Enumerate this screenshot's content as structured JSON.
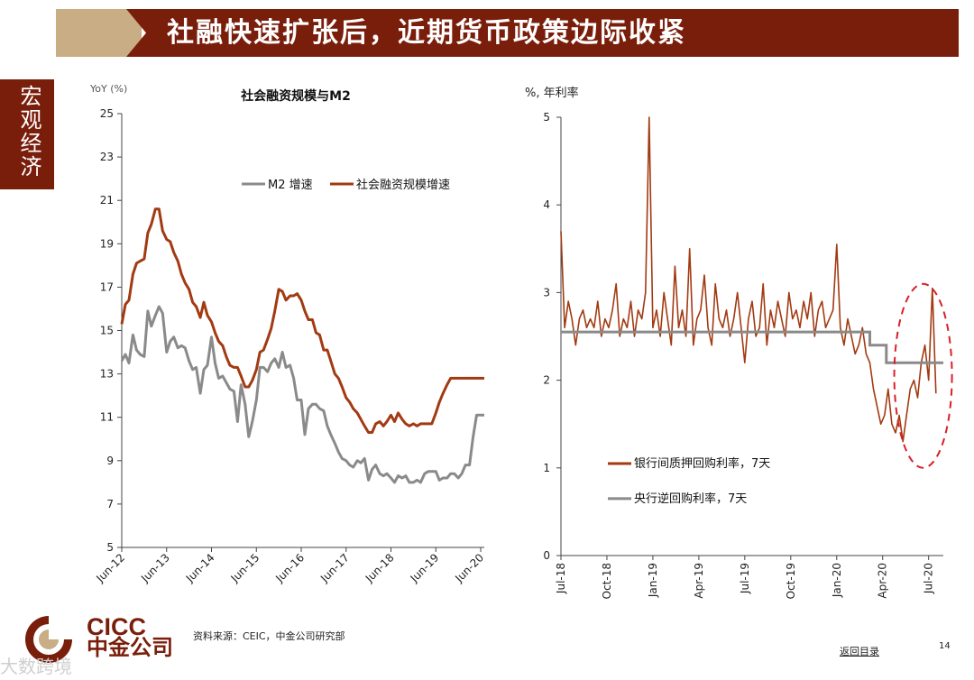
{
  "header": {
    "title": "社融快速扩张后，近期货币政策边际收紧"
  },
  "side_tab": {
    "label": "宏观经济"
  },
  "footer": {
    "source": "资料来源：CEIC，中金公司研究部",
    "back_link": "返回目录",
    "page_number": "14",
    "logo_en": "CICC",
    "logo_cn": "中金公司",
    "watermark": "大数跨境"
  },
  "colors": {
    "brand": "#7a1e0c",
    "accent_tan": "#c9ad84",
    "series_rust": "#a23a12",
    "series_gray": "#8a8a8a",
    "highlight": "#d8202a"
  },
  "chart_data": [
    {
      "type": "line",
      "title": "社会融资规模与M2",
      "ylabel": "YoY (%)",
      "xlabel": "",
      "ylim": [
        5,
        25
      ],
      "yticks": [
        5,
        7,
        9,
        11,
        13,
        15,
        17,
        19,
        21,
        23,
        25
      ],
      "xlim": [
        2012.42,
        2020.5
      ],
      "xtick_labels": [
        "Jun-12",
        "Jun-13",
        "Jun-14",
        "Jun-15",
        "Jun-16",
        "Jun-17",
        "Jun-18",
        "Jun-19",
        "Jun-20"
      ],
      "xtick_values": [
        2012.42,
        2013.42,
        2014.42,
        2015.42,
        2016.42,
        2017.42,
        2018.42,
        2019.42,
        2020.42
      ],
      "legend": "top-center",
      "series": [
        {
          "name": "M2 增速",
          "color": "#8a8a8a",
          "x": [
            2012.42,
            2012.5,
            2012.58,
            2012.67,
            2012.75,
            2012.83,
            2012.92,
            2013.0,
            2013.08,
            2013.17,
            2013.25,
            2013.33,
            2013.42,
            2013.5,
            2013.58,
            2013.67,
            2013.75,
            2013.83,
            2013.92,
            2014.0,
            2014.08,
            2014.17,
            2014.25,
            2014.33,
            2014.42,
            2014.5,
            2014.58,
            2014.67,
            2014.75,
            2014.83,
            2014.92,
            2015.0,
            2015.08,
            2015.17,
            2015.25,
            2015.33,
            2015.42,
            2015.5,
            2015.58,
            2015.67,
            2015.75,
            2015.83,
            2015.92,
            2016.0,
            2016.08,
            2016.17,
            2016.25,
            2016.33,
            2016.42,
            2016.5,
            2016.58,
            2016.67,
            2016.75,
            2016.83,
            2016.92,
            2017.0,
            2017.08,
            2017.17,
            2017.25,
            2017.33,
            2017.42,
            2017.5,
            2017.58,
            2017.67,
            2017.75,
            2017.83,
            2017.92,
            2018.0,
            2018.08,
            2018.17,
            2018.25,
            2018.33,
            2018.42,
            2018.5,
            2018.58,
            2018.67,
            2018.75,
            2018.83,
            2018.92,
            2019.0,
            2019.08,
            2019.17,
            2019.25,
            2019.33,
            2019.42,
            2019.5,
            2019.58,
            2019.67,
            2019.75,
            2019.83,
            2019.92,
            2020.0,
            2020.08,
            2020.17,
            2020.25,
            2020.33,
            2020.42,
            2020.5
          ],
          "values": [
            13.6,
            13.9,
            13.5,
            14.8,
            14.1,
            13.9,
            13.8,
            15.9,
            15.2,
            15.7,
            16.1,
            15.8,
            14.0,
            14.5,
            14.7,
            14.2,
            14.3,
            14.2,
            13.6,
            13.2,
            13.3,
            12.1,
            13.2,
            13.4,
            14.7,
            13.5,
            12.8,
            12.9,
            12.6,
            12.3,
            12.2,
            10.8,
            12.5,
            11.6,
            10.1,
            10.8,
            11.8,
            13.3,
            13.3,
            13.1,
            13.5,
            13.7,
            13.3,
            14.0,
            13.3,
            13.4,
            12.8,
            11.8,
            11.8,
            10.2,
            11.4,
            11.6,
            11.6,
            11.4,
            11.3,
            10.6,
            10.2,
            9.8,
            9.4,
            9.1,
            9.0,
            8.8,
            8.7,
            9.0,
            8.9,
            9.1,
            8.1,
            8.6,
            8.8,
            8.4,
            8.3,
            8.4,
            8.2,
            8.0,
            8.3,
            8.2,
            8.3,
            8.0,
            8.0,
            8.1,
            8.0,
            8.4,
            8.5,
            8.5,
            8.5,
            8.1,
            8.2,
            8.2,
            8.4,
            8.4,
            8.2,
            8.4,
            8.8,
            8.8,
            10.1,
            11.1,
            11.1,
            11.1
          ]
        },
        {
          "name": "社会融资规模增速",
          "color": "#a23a12",
          "x": [
            2012.42,
            2012.5,
            2012.58,
            2012.67,
            2012.75,
            2012.83,
            2012.92,
            2013.0,
            2013.08,
            2013.17,
            2013.25,
            2013.33,
            2013.42,
            2013.5,
            2013.58,
            2013.67,
            2013.75,
            2013.83,
            2013.92,
            2014.0,
            2014.08,
            2014.17,
            2014.25,
            2014.33,
            2014.42,
            2014.5,
            2014.58,
            2014.67,
            2014.75,
            2014.83,
            2014.92,
            2015.0,
            2015.08,
            2015.17,
            2015.25,
            2015.33,
            2015.42,
            2015.5,
            2015.58,
            2015.67,
            2015.75,
            2015.83,
            2015.92,
            2016.0,
            2016.08,
            2016.17,
            2016.25,
            2016.33,
            2016.42,
            2016.5,
            2016.58,
            2016.67,
            2016.75,
            2016.83,
            2016.92,
            2017.0,
            2017.08,
            2017.17,
            2017.25,
            2017.33,
            2017.42,
            2017.5,
            2017.58,
            2017.67,
            2017.75,
            2017.83,
            2017.92,
            2018.0,
            2018.08,
            2018.17,
            2018.25,
            2018.33,
            2018.42,
            2018.5,
            2018.58,
            2018.67,
            2018.75,
            2018.83,
            2018.92,
            2019.0,
            2019.08,
            2019.17,
            2019.25,
            2019.33,
            2019.42,
            2019.5,
            2019.58,
            2019.67,
            2019.75,
            2019.83,
            2019.92,
            2020.0,
            2020.08,
            2020.17,
            2020.25,
            2020.33,
            2020.42,
            2020.5
          ],
          "values": [
            15.3,
            16.2,
            16.4,
            17.6,
            18.1,
            18.2,
            18.3,
            19.5,
            19.9,
            20.6,
            20.6,
            19.6,
            19.2,
            19.1,
            18.6,
            18.2,
            17.6,
            17.2,
            16.9,
            16.3,
            16.1,
            15.6,
            16.3,
            15.7,
            15.4,
            14.9,
            14.5,
            14.3,
            13.8,
            13.4,
            13.3,
            13.3,
            12.9,
            12.4,
            12.4,
            12.7,
            13.2,
            14.0,
            14.1,
            14.6,
            15.1,
            15.9,
            16.9,
            16.8,
            16.4,
            16.6,
            16.6,
            16.7,
            16.4,
            15.9,
            15.5,
            15.5,
            14.9,
            14.8,
            14.1,
            14.1,
            13.6,
            13.0,
            12.8,
            12.4,
            11.9,
            11.7,
            11.4,
            11.2,
            10.9,
            10.6,
            10.3,
            10.3,
            10.7,
            10.8,
            10.6,
            10.8,
            11.1,
            10.8,
            11.2,
            10.9,
            10.7,
            10.6,
            10.7,
            10.6,
            10.7,
            10.7,
            10.7,
            10.7,
            11.2,
            11.7,
            12.1,
            12.5,
            12.8,
            12.8,
            12.8,
            12.8,
            12.8,
            12.8,
            12.8,
            12.8,
            12.8,
            12.8
          ]
        }
      ]
    },
    {
      "type": "line",
      "title": "",
      "ylabel": "%, 年利率",
      "xlabel": "",
      "ylim": [
        0,
        5
      ],
      "yticks": [
        0,
        1,
        2,
        3,
        4,
        5
      ],
      "xlim": [
        2018.5,
        2020.58
      ],
      "xtick_labels": [
        "Jul-18",
        "Oct-18",
        "Jan-19",
        "Apr-19",
        "Jul-19",
        "Oct-19",
        "Jan-20",
        "Apr-20",
        "Jul-20"
      ],
      "xtick_values": [
        2018.5,
        2018.75,
        2019.0,
        2019.25,
        2019.5,
        2019.75,
        2020.0,
        2020.25,
        2020.5
      ],
      "legend": "bottom-center",
      "annotation": "dashed red ellipse around recent rise",
      "series": [
        {
          "name": "银行间质押回购利率，7天",
          "color": "#a23a12",
          "x": [
            2018.5,
            2018.52,
            2018.54,
            2018.56,
            2018.58,
            2018.6,
            2018.62,
            2018.64,
            2018.66,
            2018.68,
            2018.7,
            2018.72,
            2018.74,
            2018.76,
            2018.78,
            2018.8,
            2018.82,
            2018.84,
            2018.86,
            2018.88,
            2018.9,
            2018.92,
            2018.94,
            2018.96,
            2018.98,
            2019.0,
            2019.02,
            2019.04,
            2019.06,
            2019.08,
            2019.1,
            2019.12,
            2019.14,
            2019.16,
            2019.18,
            2019.2,
            2019.22,
            2019.24,
            2019.26,
            2019.28,
            2019.3,
            2019.32,
            2019.34,
            2019.36,
            2019.38,
            2019.4,
            2019.42,
            2019.44,
            2019.46,
            2019.48,
            2019.5,
            2019.52,
            2019.54,
            2019.56,
            2019.58,
            2019.6,
            2019.62,
            2019.64,
            2019.66,
            2019.68,
            2019.7,
            2019.72,
            2019.74,
            2019.76,
            2019.78,
            2019.8,
            2019.82,
            2019.84,
            2019.86,
            2019.88,
            2019.9,
            2019.92,
            2019.94,
            2019.96,
            2019.98,
            2020.0,
            2020.02,
            2020.04,
            2020.06,
            2020.08,
            2020.1,
            2020.12,
            2020.14,
            2020.16,
            2020.18,
            2020.2,
            2020.22,
            2020.24,
            2020.26,
            2020.28,
            2020.3,
            2020.32,
            2020.34,
            2020.36,
            2020.38,
            2020.4,
            2020.42,
            2020.44,
            2020.46,
            2020.48,
            2020.5,
            2020.52,
            2020.54
          ],
          "values": [
            3.7,
            2.6,
            2.9,
            2.7,
            2.4,
            2.7,
            2.8,
            2.6,
            2.7,
            2.6,
            2.9,
            2.5,
            2.7,
            2.6,
            2.8,
            3.1,
            2.5,
            2.7,
            2.6,
            2.9,
            2.5,
            2.8,
            2.7,
            3.0,
            5.0,
            2.6,
            2.8,
            2.5,
            3.0,
            2.7,
            2.4,
            3.3,
            2.6,
            2.8,
            2.5,
            3.5,
            2.4,
            2.7,
            2.8,
            3.2,
            2.6,
            2.4,
            3.1,
            2.7,
            2.6,
            2.8,
            2.5,
            2.7,
            3.0,
            2.6,
            2.2,
            2.7,
            2.9,
            2.5,
            2.6,
            3.1,
            2.4,
            2.8,
            2.6,
            2.9,
            2.7,
            2.5,
            3.0,
            2.7,
            2.8,
            2.6,
            2.9,
            2.7,
            3.0,
            2.5,
            2.8,
            2.9,
            2.6,
            2.7,
            2.8,
            3.55,
            2.6,
            2.4,
            2.7,
            2.5,
            2.3,
            2.4,
            2.6,
            2.3,
            2.2,
            1.9,
            1.7,
            1.5,
            1.6,
            1.9,
            1.5,
            1.4,
            1.6,
            1.3,
            1.6,
            1.9,
            2.0,
            1.8,
            2.2,
            2.4,
            2.0,
            3.05,
            1.85
          ]
        },
        {
          "name": "央行逆回购利率，7天",
          "color": "#8a8a8a",
          "step_x": [
            2018.5,
            2020.18,
            2020.18,
            2020.27,
            2020.27,
            2020.58
          ],
          "step_values": [
            2.55,
            2.55,
            2.4,
            2.4,
            2.2,
            2.2
          ]
        }
      ]
    }
  ]
}
